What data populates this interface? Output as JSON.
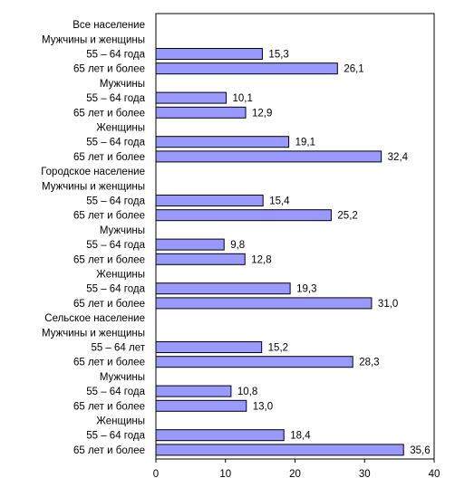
{
  "colors": {
    "bar_fill": "#9999ff",
    "bar_stroke": "#000000",
    "axis": "#000000",
    "background": "#ffffff"
  },
  "chart_data": {
    "type": "bar",
    "orientation": "horizontal",
    "title": "",
    "xlabel": "",
    "ylabel": "",
    "xlim": [
      0,
      40
    ],
    "x_ticks": [
      "0",
      "10",
      "20",
      "30",
      "40"
    ],
    "grid": false,
    "legend": "none",
    "categories": [
      "Все население",
      "Мужчины и женщины",
      "55 – 64 года",
      "65 лет и более",
      "Мужчины",
      "55 – 64 года",
      "65 лет и более",
      "Женщины",
      "55 – 64 года",
      "65 лет и более",
      "Городское население",
      "Мужчины и женщины",
      "55 – 64 года",
      "65 лет и более",
      "Мужчины",
      "55 – 64 года",
      "65 лет и более",
      "Женщины",
      "55 – 64 года",
      "65 лет и более",
      "Сельское население",
      "Мужчины и женщины",
      "55 – 64 лет",
      "65 лет и более",
      "Мужчины",
      "55 – 64 года",
      "65 лет и более",
      "Женщины",
      "55 – 64 года",
      "65 лет и более"
    ],
    "values": [
      null,
      null,
      15.3,
      26.1,
      null,
      10.1,
      12.9,
      null,
      19.1,
      32.4,
      null,
      null,
      15.4,
      25.2,
      null,
      9.8,
      12.8,
      null,
      19.3,
      31.0,
      null,
      null,
      15.2,
      28.3,
      null,
      10.8,
      13.0,
      null,
      18.4,
      35.6
    ],
    "value_labels": [
      "",
      "",
      "15,3",
      "26,1",
      "",
      "10,1",
      "12,9",
      "",
      "19,1",
      "32,4",
      "",
      "",
      "15,4",
      "25,2",
      "",
      "9,8",
      "12,8",
      "",
      "19,3",
      "31,0",
      "",
      "",
      "15,2",
      "28,3",
      "",
      "10,8",
      "13,0",
      "",
      "18,4",
      "35,6"
    ]
  }
}
